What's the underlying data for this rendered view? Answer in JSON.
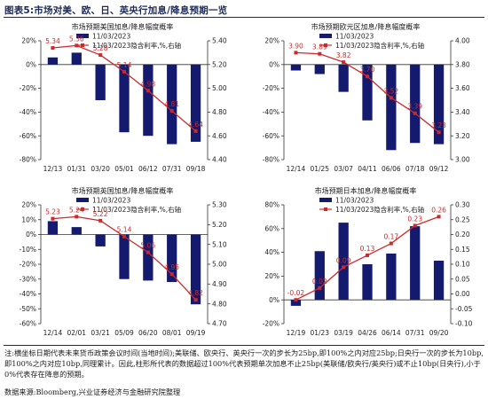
{
  "figure_title": "图表5:市场对美、欧、日、英央行加息/降息预期一览",
  "footnote": "注:横坐标日期代表未来货币政策会议时间(当地时间);美联储、欧央行、英央行一次的步长为25bp,即100%之内对应25bp;日央行一次的步长为10bp,即100%之内对应10bp,同理累计。因此,柱形所代表的数据超过100%代表预期单次加息不止25bp(美联储/欧央行/英央行)或不止10bp(日央行),小于0%代表存在降息的预期。",
  "source": "数据来源:Bloomberg,兴业证券经济与金融研究院整理",
  "colors": {
    "bar": "#141a6e",
    "line": "#cc2a2a",
    "label": "#cc2a2a",
    "axis": "#333333"
  },
  "chart_data": [
    {
      "type": "bar+line",
      "title": "市场预期美国加息/降息幅度概率",
      "legend_bar": "11/03/2023",
      "legend_line": "11/03/2023隐含利率,%,右轴",
      "categories": [
        "12/13",
        "01/31",
        "03/20",
        "05/01",
        "06/12",
        "07/31",
        "09/18"
      ],
      "bar_values": [
        6,
        10,
        -30,
        -57,
        -60,
        -67,
        -65
      ],
      "line_values": [
        5.34,
        5.36,
        5.28,
        5.14,
        4.98,
        4.81,
        4.64
      ],
      "line_labels": [
        "5.34",
        "5.36",
        "5.28",
        "5.14",
        "4.98",
        "4.81",
        "4.64"
      ],
      "y_left": {
        "min": -80,
        "max": 20,
        "ticks": [
          20,
          0,
          -20,
          -40,
          -60,
          -80
        ],
        "labels": [
          "20%",
          "0%",
          "-20%",
          "-40%",
          "-60%",
          "-80%"
        ]
      },
      "y_right": {
        "min": 4.4,
        "max": 5.4,
        "ticks": [
          5.4,
          5.2,
          5.0,
          4.8,
          4.6,
          4.4
        ],
        "labels": [
          "5.40",
          "5.20",
          "5.00",
          "4.80",
          "4.60",
          "4.40"
        ]
      }
    },
    {
      "type": "bar+line",
      "title": "市场预期欧元区加息/降息幅度概率",
      "legend_bar": "11/03/2023",
      "legend_line": "11/03/2023隐含利率,%,右轴",
      "categories": [
        "12/14",
        "01/25",
        "03/07",
        "04/11",
        "06/06",
        "07/18",
        "09/12"
      ],
      "bar_values": [
        -5,
        -8,
        -23,
        -47,
        -72,
        -66,
        -67
      ],
      "line_values": [
        3.9,
        3.89,
        3.82,
        3.7,
        3.52,
        3.39,
        3.23
      ],
      "line_labels": [
        "3.90",
        "3.89",
        "3.82",
        "3.70",
        "3.52",
        "3.39",
        "3.23"
      ],
      "y_left": {
        "min": -80,
        "max": 20,
        "ticks": [
          20,
          0,
          -20,
          -40,
          -60,
          -80
        ],
        "labels": [
          "20%",
          "0%",
          "-20%",
          "-40%",
          "-60%",
          "-80%"
        ]
      },
      "y_right": {
        "min": 3.0,
        "max": 4.0,
        "ticks": [
          4.0,
          3.8,
          3.6,
          3.4,
          3.2,
          3.0
        ],
        "labels": [
          "4.00",
          "3.80",
          "3.60",
          "3.40",
          "3.20",
          "3.00"
        ]
      }
    },
    {
      "type": "bar+line",
      "title": "市场预期英国加息/降息幅度概率",
      "legend_bar": "11/03/2023",
      "legend_line": "11/03/2023隐含利率,%,右轴",
      "categories": [
        "12/14",
        "02/01",
        "03/21",
        "05/09",
        "06/20",
        "08/01",
        "09/19"
      ],
      "bar_values": [
        9,
        5,
        -8,
        -30,
        -31,
        -32,
        -47
      ],
      "line_values": [
        5.23,
        5.24,
        5.22,
        5.14,
        5.06,
        4.95,
        4.82
      ],
      "line_labels": [
        "5.23",
        "5.24",
        "5.22",
        "5.14",
        "5.06",
        "4.95",
        "4.82"
      ],
      "y_left": {
        "min": -60,
        "max": 20,
        "ticks": [
          20,
          10,
          0,
          -10,
          -20,
          -30,
          -40,
          -50,
          -60
        ],
        "labels": [
          "20%",
          "10%",
          "0%",
          "-10%",
          "-20%",
          "-30%",
          "-40%",
          "-50%",
          "-60%"
        ]
      },
      "y_right": {
        "min": 4.7,
        "max": 5.3,
        "ticks": [
          5.3,
          5.2,
          5.1,
          5.0,
          4.9,
          4.8,
          4.7
        ],
        "labels": [
          "5.30",
          "5.20",
          "5.10",
          "5.00",
          "4.90",
          "4.80",
          "4.70"
        ]
      }
    },
    {
      "type": "bar+line",
      "title": "市场预期日本加息/降息幅度概率",
      "legend_bar": "11/03/2023",
      "legend_line": "11/03/2023隐含利率,%,右轴",
      "categories": [
        "12/19",
        "01/23",
        "03/19",
        "04/26",
        "06/14",
        "07/31",
        "09/20"
      ],
      "bar_values": [
        -5,
        41,
        65,
        30,
        39,
        62,
        33
      ],
      "line_values": [
        -0.02,
        0.02,
        0.09,
        0.13,
        0.17,
        0.23,
        0.26
      ],
      "line_labels": [
        "-0.02",
        "0.02",
        "0.09",
        "0.13",
        "0.17",
        "0.23",
        "0.26"
      ],
      "y_left": {
        "min": -20,
        "max": 80,
        "ticks": [
          80,
          60,
          40,
          20,
          0,
          -20
        ],
        "labels": [
          "80%",
          "60%",
          "40%",
          "20%",
          "0%",
          "-20%"
        ]
      },
      "y_right": {
        "min": -0.1,
        "max": 0.3,
        "ticks": [
          0.3,
          0.25,
          0.2,
          0.15,
          0.1,
          0.05,
          0.0,
          -0.05,
          -0.1
        ],
        "labels": [
          "0.30",
          "0.25",
          "0.20",
          "0.15",
          "0.10",
          "0.05",
          "0.00",
          "-0.05",
          "-0.10"
        ]
      }
    }
  ]
}
